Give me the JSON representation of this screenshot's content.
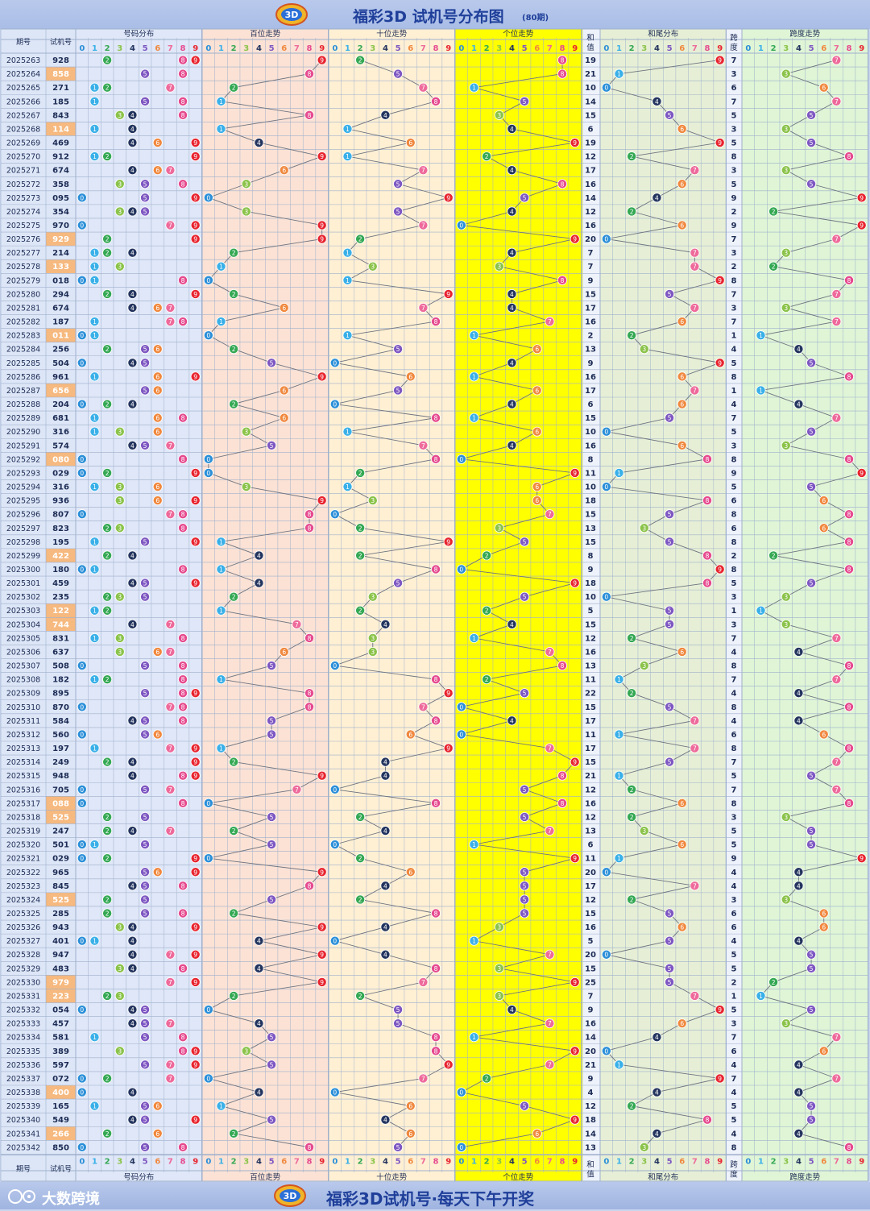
{
  "header": {
    "title": "福彩3D 试机号分布图",
    "subtitle": "(80期)"
  },
  "footer": {
    "brand": "大数跨境",
    "slogan": "福彩3D试机号·每天下午开奖"
  },
  "colors": {
    "title": "#1f3f9a",
    "dist_bg": "#dfe7f8",
    "hundreds_bg": "#fbe2d5",
    "tens_bg": "#fff0d4",
    "units_bg": "#ffff00",
    "sum_bg": "#e6efd6",
    "span_bg": "#dff5d6",
    "highlight_row": "#f6b97f",
    "ball_0": "#2b8fd8",
    "ball_1": "#3ab0e8",
    "ball_2": "#34a853",
    "ball_3": "#8bc34a",
    "ball_4": "#23345e",
    "ball_5": "#7e57c2",
    "ball_6": "#f0883e",
    "ball_7": "#ee6a9b",
    "ball_8": "#e64a8f",
    "ball_9": "#e8242f"
  },
  "chart_data": {
    "type": "table",
    "columns": {
      "issue": "期号",
      "test_number": "试机号",
      "distribution": "号码分布",
      "hundreds": "百位走势",
      "tens": "十位走势",
      "units": "个位走势",
      "sum_top": "和",
      "sum_bottom": "值",
      "sum_tail": "和尾分布",
      "span_top": "跨",
      "span_bottom": "度",
      "span_trend": "跨度走势"
    },
    "digit_labels": [
      "0",
      "1",
      "2",
      "3",
      "4",
      "5",
      "6",
      "7",
      "8",
      "9"
    ],
    "rows": [
      {
        "issue": "2025263",
        "number": "928",
        "sum": "19",
        "span": "7"
      },
      {
        "issue": "2025264",
        "number": "858",
        "sum": "21",
        "span": "3"
      },
      {
        "issue": "2025265",
        "number": "271",
        "sum": "10",
        "span": "6"
      },
      {
        "issue": "2025266",
        "number": "185",
        "sum": "14",
        "span": "7"
      },
      {
        "issue": "2025267",
        "number": "843",
        "sum": "15",
        "span": "5"
      },
      {
        "issue": "2025268",
        "number": "114",
        "sum": "6",
        "span": "3"
      },
      {
        "issue": "2025269",
        "number": "469",
        "sum": "19",
        "span": "5"
      },
      {
        "issue": "2025270",
        "number": "912",
        "sum": "12",
        "span": "8"
      },
      {
        "issue": "2025271",
        "number": "674",
        "sum": "17",
        "span": "3"
      },
      {
        "issue": "2025272",
        "number": "358",
        "sum": "16",
        "span": "5"
      },
      {
        "issue": "2025273",
        "number": "095",
        "sum": "14",
        "span": "9"
      },
      {
        "issue": "2025274",
        "number": "354",
        "sum": "12",
        "span": "2"
      },
      {
        "issue": "2025275",
        "number": "970",
        "sum": "16",
        "span": "9"
      },
      {
        "issue": "2025276",
        "number": "929",
        "sum": "20",
        "span": "7"
      },
      {
        "issue": "2025277",
        "number": "214",
        "sum": "7",
        "span": "3"
      },
      {
        "issue": "2025278",
        "number": "133",
        "sum": "7",
        "span": "2"
      },
      {
        "issue": "2025279",
        "number": "018",
        "sum": "9",
        "span": "8"
      },
      {
        "issue": "2025280",
        "number": "294",
        "sum": "15",
        "span": "7"
      },
      {
        "issue": "2025281",
        "number": "674",
        "sum": "17",
        "span": "3"
      },
      {
        "issue": "2025282",
        "number": "187",
        "sum": "16",
        "span": "7"
      },
      {
        "issue": "2025283",
        "number": "011",
        "sum": "2",
        "span": "1"
      },
      {
        "issue": "2025284",
        "number": "256",
        "sum": "13",
        "span": "4"
      },
      {
        "issue": "2025285",
        "number": "504",
        "sum": "9",
        "span": "5"
      },
      {
        "issue": "2025286",
        "number": "961",
        "sum": "16",
        "span": "8"
      },
      {
        "issue": "2025287",
        "number": "656",
        "sum": "17",
        "span": "1"
      },
      {
        "issue": "2025288",
        "number": "204",
        "sum": "6",
        "span": "4"
      },
      {
        "issue": "2025289",
        "number": "681",
        "sum": "15",
        "span": "7"
      },
      {
        "issue": "2025290",
        "number": "316",
        "sum": "10",
        "span": "5"
      },
      {
        "issue": "2025291",
        "number": "574",
        "sum": "16",
        "span": "3"
      },
      {
        "issue": "2025292",
        "number": "080",
        "sum": "8",
        "span": "8"
      },
      {
        "issue": "2025293",
        "number": "029",
        "sum": "11",
        "span": "9"
      },
      {
        "issue": "2025294",
        "number": "316",
        "sum": "10",
        "span": "5"
      },
      {
        "issue": "2025295",
        "number": "936",
        "sum": "18",
        "span": "6"
      },
      {
        "issue": "2025296",
        "number": "807",
        "sum": "15",
        "span": "8"
      },
      {
        "issue": "2025297",
        "number": "823",
        "sum": "13",
        "span": "6"
      },
      {
        "issue": "2025298",
        "number": "195",
        "sum": "15",
        "span": "8"
      },
      {
        "issue": "2025299",
        "number": "422",
        "sum": "8",
        "span": "2"
      },
      {
        "issue": "2025300",
        "number": "180",
        "sum": "9",
        "span": "8"
      },
      {
        "issue": "2025301",
        "number": "459",
        "sum": "18",
        "span": "5"
      },
      {
        "issue": "2025302",
        "number": "235",
        "sum": "10",
        "span": "3"
      },
      {
        "issue": "2025303",
        "number": "122",
        "sum": "5",
        "span": "1"
      },
      {
        "issue": "2025304",
        "number": "744",
        "sum": "15",
        "span": "3"
      },
      {
        "issue": "2025305",
        "number": "831",
        "sum": "12",
        "span": "7"
      },
      {
        "issue": "2025306",
        "number": "637",
        "sum": "16",
        "span": "4"
      },
      {
        "issue": "2025307",
        "number": "508",
        "sum": "13",
        "span": "8"
      },
      {
        "issue": "2025308",
        "number": "182",
        "sum": "11",
        "span": "7"
      },
      {
        "issue": "2025309",
        "number": "895",
        "sum": "22",
        "span": "4"
      },
      {
        "issue": "2025310",
        "number": "870",
        "sum": "15",
        "span": "8"
      },
      {
        "issue": "2025311",
        "number": "584",
        "sum": "17",
        "span": "4"
      },
      {
        "issue": "2025312",
        "number": "560",
        "sum": "11",
        "span": "6"
      },
      {
        "issue": "2025313",
        "number": "197",
        "sum": "17",
        "span": "8"
      },
      {
        "issue": "2025314",
        "number": "249",
        "sum": "15",
        "span": "7"
      },
      {
        "issue": "2025315",
        "number": "948",
        "sum": "21",
        "span": "5"
      },
      {
        "issue": "2025316",
        "number": "705",
        "sum": "12",
        "span": "7"
      },
      {
        "issue": "2025317",
        "number": "088",
        "sum": "16",
        "span": "8"
      },
      {
        "issue": "2025318",
        "number": "525",
        "sum": "12",
        "span": "3"
      },
      {
        "issue": "2025319",
        "number": "247",
        "sum": "13",
        "span": "5"
      },
      {
        "issue": "2025320",
        "number": "501",
        "sum": "6",
        "span": "5"
      },
      {
        "issue": "2025321",
        "number": "029",
        "sum": "11",
        "span": "9"
      },
      {
        "issue": "2025322",
        "number": "965",
        "sum": "20",
        "span": "4"
      },
      {
        "issue": "2025323",
        "number": "845",
        "sum": "17",
        "span": "4"
      },
      {
        "issue": "2025324",
        "number": "525",
        "sum": "12",
        "span": "3"
      },
      {
        "issue": "2025325",
        "number": "285",
        "sum": "15",
        "span": "6"
      },
      {
        "issue": "2025326",
        "number": "943",
        "sum": "16",
        "span": "6"
      },
      {
        "issue": "2025327",
        "number": "401",
        "sum": "5",
        "span": "4"
      },
      {
        "issue": "2025328",
        "number": "947",
        "sum": "20",
        "span": "5"
      },
      {
        "issue": "2025329",
        "number": "483",
        "sum": "15",
        "span": "5"
      },
      {
        "issue": "2025330",
        "number": "979",
        "sum": "25",
        "span": "2"
      },
      {
        "issue": "2025331",
        "number": "223",
        "sum": "7",
        "span": "1"
      },
      {
        "issue": "2025332",
        "number": "054",
        "sum": "9",
        "span": "5"
      },
      {
        "issue": "2025333",
        "number": "457",
        "sum": "16",
        "span": "3"
      },
      {
        "issue": "2025334",
        "number": "581",
        "sum": "14",
        "span": "7"
      },
      {
        "issue": "2025335",
        "number": "389",
        "sum": "20",
        "span": "6"
      },
      {
        "issue": "2025336",
        "number": "597",
        "sum": "21",
        "span": "4"
      },
      {
        "issue": "2025337",
        "number": "072",
        "sum": "9",
        "span": "7"
      },
      {
        "issue": "2025338",
        "number": "400",
        "sum": "4",
        "span": "4"
      },
      {
        "issue": "2025339",
        "number": "165",
        "sum": "12",
        "span": "5"
      },
      {
        "issue": "2025340",
        "number": "549",
        "sum": "18",
        "span": "5"
      },
      {
        "issue": "2025341",
        "number": "266",
        "sum": "14",
        "span": "4"
      },
      {
        "issue": "2025342",
        "number": "850",
        "sum": "13",
        "span": "8"
      }
    ]
  }
}
